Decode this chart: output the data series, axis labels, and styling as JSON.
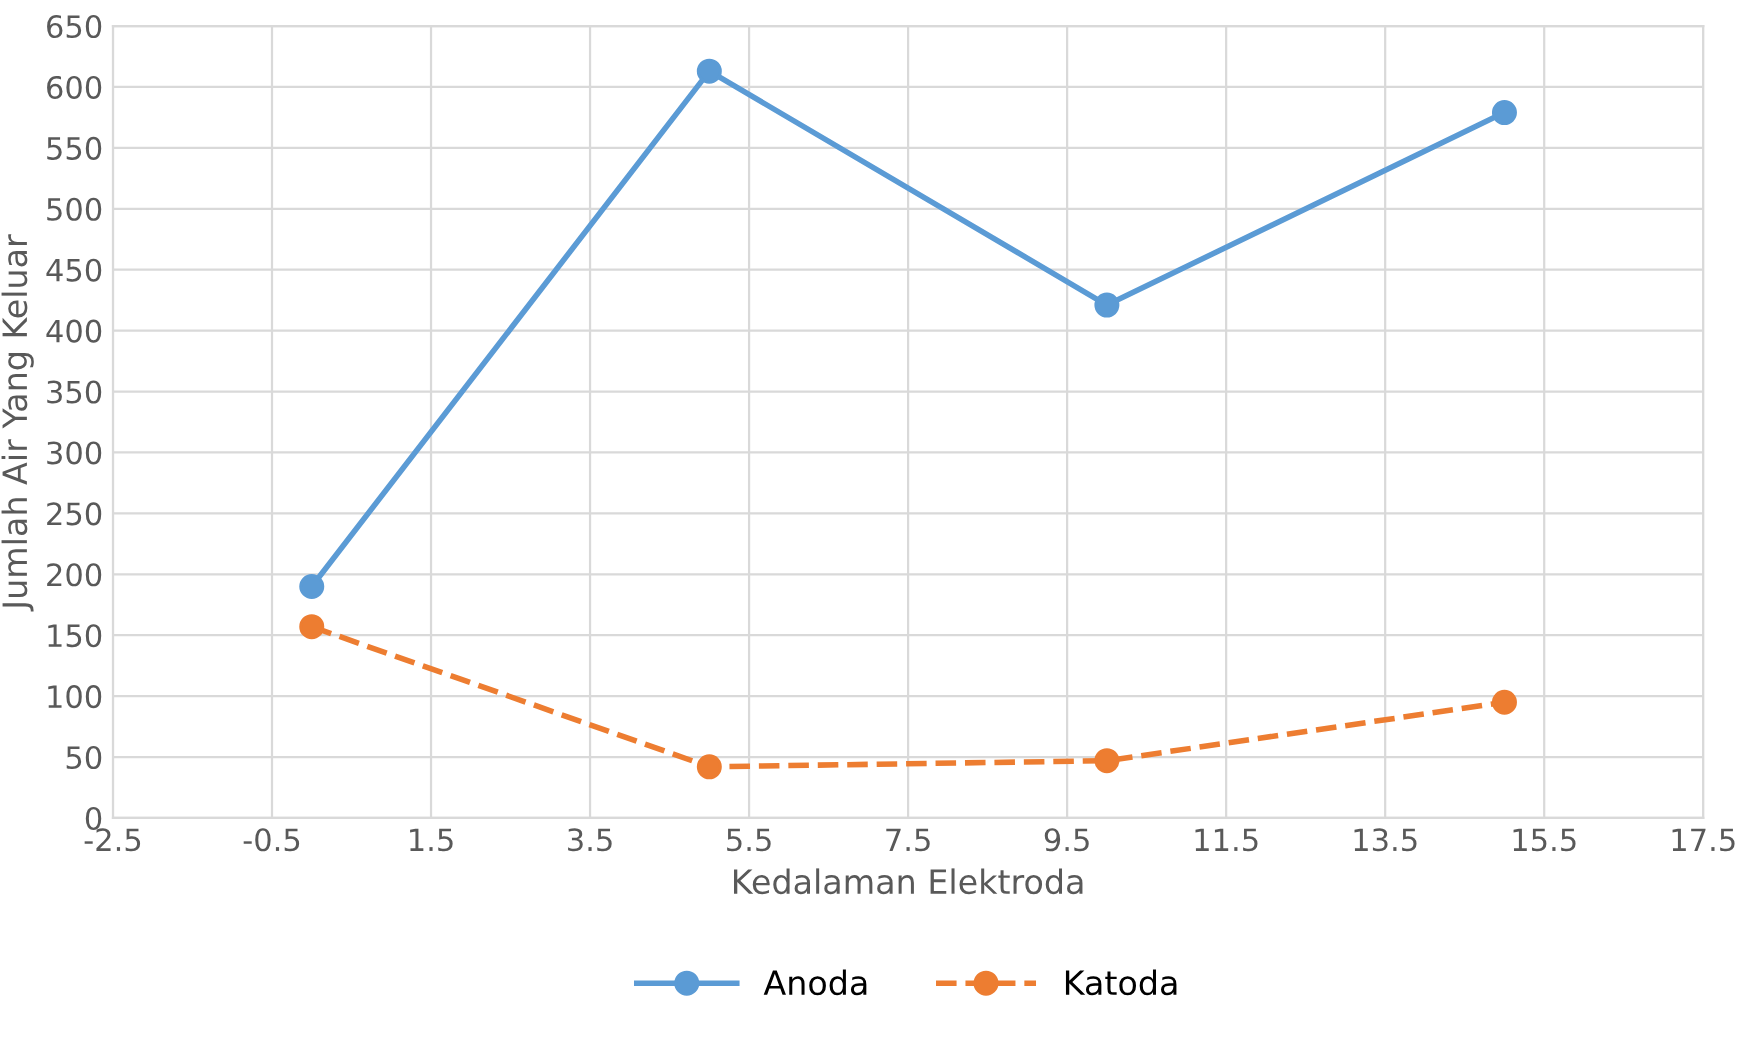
{
  "chart_data": {
    "type": "line",
    "xlabel": "Kedalaman Elektroda",
    "ylabel": "Jumlah Air Yang Keluar",
    "x": [
      0,
      5,
      10,
      15
    ],
    "series": [
      {
        "name": "Anoda",
        "color": "#5b9bd5",
        "values": [
          190,
          613,
          421,
          579
        ],
        "line_style": "solid"
      },
      {
        "name": "Katoda",
        "color": "#ed7d31",
        "values": [
          157,
          42,
          47,
          95
        ],
        "line_style": "dashed"
      }
    ],
    "xlim": [
      -2.5,
      17.5
    ],
    "xticks": [
      -2.5,
      -0.5,
      1.5,
      3.5,
      5.5,
      7.5,
      9.5,
      11.5,
      13.5,
      15.5,
      17.5
    ],
    "ylim": [
      0,
      650
    ],
    "yticks": [
      0,
      50,
      100,
      150,
      200,
      250,
      300,
      350,
      400,
      450,
      500,
      550,
      600,
      650
    ],
    "grid": true,
    "legend": "bottom",
    "marker": "circle"
  }
}
